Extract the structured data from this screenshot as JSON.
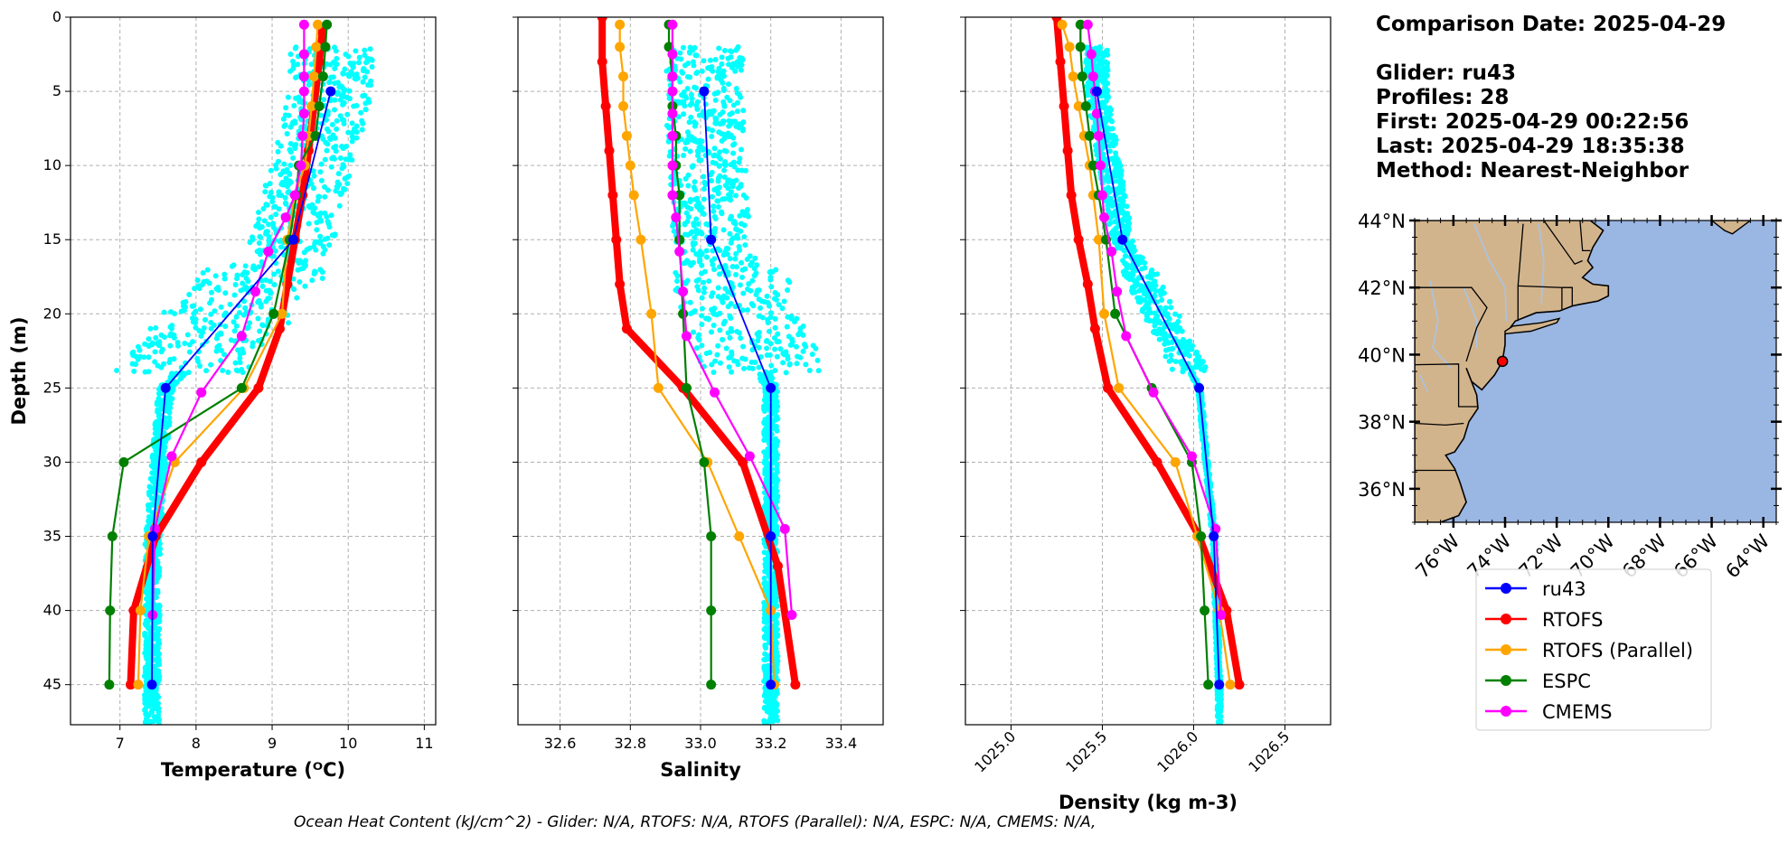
{
  "info": {
    "comparison_date": "Comparison Date: 2025-04-29",
    "glider": "Glider: ru43",
    "profiles": "Profiles: 28",
    "first": "First: 2025-04-29 00:22:56",
    "last": "Last: 2025-04-29 18:35:38",
    "method": "Method: Nearest-Neighbor"
  },
  "ohc_text": "Ocean Heat Content (kJ/cm^2) - Glider: N/A,  RTOFS: N/A,  RTOFS (Parallel): N/A,  ESPC: N/A,  CMEMS: N/A,",
  "legend": {
    "entries": [
      {
        "label": "ru43",
        "color": "#0000ff"
      },
      {
        "label": "RTOFS",
        "color": "#ff0000"
      },
      {
        "label": "RTOFS (Parallel)",
        "color": "#ffa500"
      },
      {
        "label": "ESPC",
        "color": "#008000"
      },
      {
        "label": "CMEMS",
        "color": "#ff00ff"
      }
    ]
  },
  "colors": {
    "glider_raw": "#00ffff",
    "land": "#d2b48c",
    "ocean": "#9ab6e2",
    "rivers": "#a9c3e6",
    "grid": "#b0b0b0"
  },
  "chart_data": [
    {
      "type": "line",
      "panel": "temperature",
      "xlabel": "Temperature (ᴼC)",
      "ylabel": "Depth (m)",
      "xlim": [
        6.35,
        11.15
      ],
      "ylim": [
        47.7,
        0
      ],
      "xticks": [
        "7",
        "8",
        "9",
        "10",
        "11"
      ],
      "yticks": [
        "0",
        "5",
        "10",
        "15",
        "20",
        "25",
        "30",
        "35",
        "40",
        "45"
      ],
      "grid": true,
      "series": [
        {
          "name": "ru43",
          "color": "#0000ff",
          "width": 1.8,
          "x": [
            9.77,
            9.28,
            7.6,
            7.43,
            7.42
          ],
          "y": [
            5,
            15,
            25,
            35,
            45
          ]
        },
        {
          "name": "RTOFS",
          "color": "#ff0000",
          "width": 8,
          "x": [
            9.66,
            9.62,
            9.55,
            9.48,
            9.4,
            9.3,
            9.2,
            9.1,
            8.82,
            8.07,
            7.47,
            7.18,
            7.14
          ],
          "y": [
            1,
            3,
            6,
            9,
            12,
            15,
            18,
            21,
            25,
            30,
            35,
            40,
            45
          ]
        },
        {
          "name": "RTOFS (Parallel)",
          "color": "#ffa500",
          "width": 2.2,
          "x": [
            9.6,
            9.58,
            9.55,
            9.52,
            9.48,
            9.43,
            9.3,
            9.2,
            9.13,
            8.63,
            7.72,
            7.38,
            7.27,
            7.24
          ],
          "y": [
            0.5,
            2,
            4,
            6,
            8,
            10,
            12,
            15,
            20,
            25,
            30,
            35,
            40,
            45
          ]
        },
        {
          "name": "ESPC",
          "color": "#008000",
          "width": 2.2,
          "x": [
            9.72,
            9.7,
            9.67,
            9.62,
            9.57,
            9.35,
            9.32,
            9.23,
            9.02,
            8.6,
            7.05,
            6.9,
            6.87,
            6.86
          ],
          "y": [
            0.5,
            2,
            4,
            6,
            8,
            10,
            12,
            15,
            20,
            25,
            30,
            35,
            40,
            45
          ]
        },
        {
          "name": "CMEMS",
          "color": "#ff00ff",
          "width": 2.2,
          "x": [
            9.42,
            9.42,
            9.42,
            9.42,
            9.42,
            9.4,
            9.38,
            9.3,
            9.18,
            8.95,
            8.78,
            8.6,
            8.07,
            7.68,
            7.46,
            7.43
          ],
          "y": [
            0.5,
            2.5,
            4,
            5,
            6.5,
            8,
            10,
            12,
            13.5,
            15.8,
            18.5,
            21.5,
            25.3,
            29.6,
            34.5,
            40.3
          ]
        }
      ]
    },
    {
      "type": "line",
      "panel": "salinity",
      "xlabel": "Salinity",
      "xlim": [
        32.48,
        33.52
      ],
      "ylim": [
        47.7,
        0
      ],
      "xticks": [
        "32.6",
        "32.8",
        "33.0",
        "33.2",
        "33.4"
      ],
      "grid": true,
      "series": [
        {
          "name": "ru43",
          "color": "#0000ff",
          "width": 1.8,
          "x": [
            33.01,
            33.03,
            33.2,
            33.2,
            33.2
          ],
          "y": [
            5,
            15,
            25,
            35,
            45
          ]
        },
        {
          "name": "RTOFS",
          "color": "#ff0000",
          "width": 8,
          "x": [
            32.72,
            32.72,
            32.73,
            32.74,
            32.75,
            32.76,
            32.77,
            32.79,
            32.95,
            33.12,
            33.22,
            33.27
          ],
          "y": [
            0,
            3,
            6,
            9,
            12,
            15,
            18,
            21,
            25,
            30,
            37,
            45
          ]
        },
        {
          "name": "RTOFS (Parallel)",
          "color": "#ffa500",
          "width": 2.2,
          "x": [
            32.77,
            32.77,
            32.78,
            32.78,
            32.79,
            32.8,
            32.81,
            32.83,
            32.86,
            32.88,
            33.02,
            33.11,
            33.2,
            33.21
          ],
          "y": [
            0.5,
            2,
            4,
            6,
            8,
            10,
            12,
            15,
            20,
            25,
            30,
            35,
            40,
            45
          ]
        },
        {
          "name": "ESPC",
          "color": "#008000",
          "width": 2.2,
          "x": [
            32.91,
            32.91,
            32.92,
            32.92,
            32.93,
            32.93,
            32.94,
            32.94,
            32.95,
            32.96,
            33.01,
            33.03,
            33.03,
            33.03
          ],
          "y": [
            0.5,
            2,
            4,
            6,
            8,
            10,
            12,
            15,
            20,
            25,
            30,
            35,
            40,
            45
          ]
        },
        {
          "name": "CMEMS",
          "color": "#ff00ff",
          "width": 2.2,
          "x": [
            32.92,
            32.92,
            32.92,
            32.92,
            32.92,
            32.92,
            32.92,
            32.92,
            32.93,
            32.94,
            32.95,
            32.96,
            33.04,
            33.14,
            33.24,
            33.26
          ],
          "y": [
            0.5,
            2.5,
            4,
            5,
            6.5,
            8,
            10,
            12,
            13.5,
            15.8,
            18.5,
            21.5,
            25.3,
            29.6,
            34.5,
            40.3
          ]
        }
      ]
    },
    {
      "type": "line",
      "panel": "density",
      "xlabel": "Density (kg m-3)",
      "xlim": [
        1024.75,
        1026.75
      ],
      "ylim": [
        47.7,
        0
      ],
      "xticks": [
        "1025.0",
        "1025.5",
        "1026.0",
        "1026.5"
      ],
      "grid": true,
      "series": [
        {
          "name": "ru43",
          "color": "#0000ff",
          "width": 1.8,
          "x": [
            1025.47,
            1025.61,
            1026.03,
            1026.11,
            1026.14
          ],
          "y": [
            5,
            15,
            25,
            35,
            45
          ]
        },
        {
          "name": "RTOFS",
          "color": "#ff0000",
          "width": 8,
          "x": [
            1025.25,
            1025.27,
            1025.29,
            1025.31,
            1025.33,
            1025.37,
            1025.42,
            1025.46,
            1025.53,
            1025.8,
            1026.03,
            1026.18,
            1026.25
          ],
          "y": [
            0,
            3,
            6,
            9,
            12,
            15,
            18,
            21,
            25,
            30,
            35,
            40,
            45
          ]
        },
        {
          "name": "RTOFS (Parallel)",
          "color": "#ffa500",
          "width": 2.2,
          "x": [
            1025.28,
            1025.32,
            1025.34,
            1025.37,
            1025.4,
            1025.43,
            1025.45,
            1025.48,
            1025.51,
            1025.59,
            1025.9,
            1026.02,
            1026.14,
            1026.2
          ],
          "y": [
            0.5,
            2,
            4,
            6,
            8,
            10,
            12,
            15,
            20,
            25,
            30,
            35,
            40,
            45
          ]
        },
        {
          "name": "ESPC",
          "color": "#008000",
          "width": 2.2,
          "x": [
            1025.38,
            1025.38,
            1025.39,
            1025.41,
            1025.43,
            1025.45,
            1025.48,
            1025.52,
            1025.57,
            1025.77,
            1025.99,
            1026.04,
            1026.06,
            1026.08
          ],
          "y": [
            0.5,
            2,
            4,
            6,
            8,
            10,
            12,
            15,
            20,
            25,
            30,
            35,
            40,
            45
          ]
        },
        {
          "name": "CMEMS",
          "color": "#ff00ff",
          "width": 2.2,
          "x": [
            1025.42,
            1025.44,
            1025.45,
            1025.46,
            1025.47,
            1025.48,
            1025.49,
            1025.5,
            1025.51,
            1025.55,
            1025.58,
            1025.63,
            1025.78,
            1025.99,
            1026.12,
            1026.15
          ],
          "y": [
            0.5,
            2.5,
            4,
            5,
            6.5,
            8,
            10,
            12,
            13.5,
            15.8,
            18.5,
            21.5,
            25.3,
            29.6,
            34.5,
            40.3
          ]
        }
      ]
    },
    {
      "type": "map",
      "panel": "map",
      "lon_range": [
        -77.5,
        -63.5
      ],
      "lat_range": [
        35,
        44
      ],
      "lat_ticks": [
        "36°N",
        "38°N",
        "40°N",
        "42°N",
        "44°N"
      ],
      "lon_ticks": [
        "76°W",
        "74°W",
        "72°W",
        "70°W",
        "68°W",
        "66°W",
        "64°W"
      ],
      "glider_location": {
        "lon": -74.1,
        "lat": 39.8
      }
    }
  ]
}
